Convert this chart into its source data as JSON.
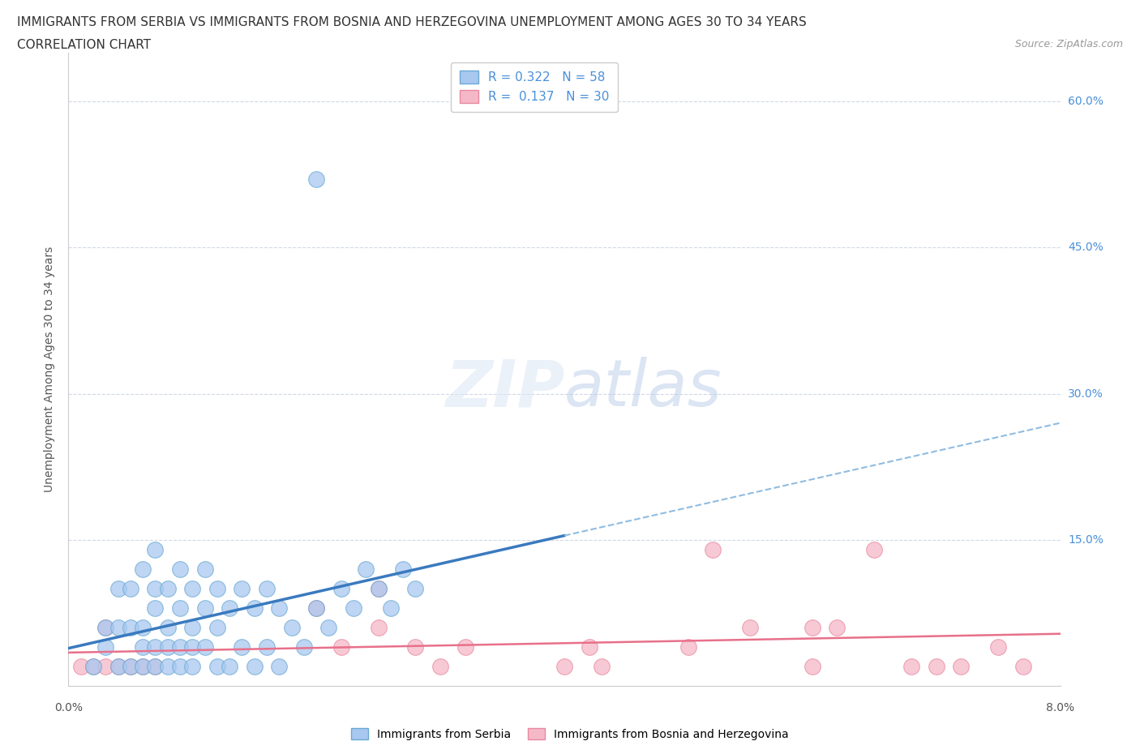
{
  "title_line1": "IMMIGRANTS FROM SERBIA VS IMMIGRANTS FROM BOSNIA AND HERZEGOVINA UNEMPLOYMENT AMONG AGES 30 TO 34 YEARS",
  "title_line2": "CORRELATION CHART",
  "source_text": "Source: ZipAtlas.com",
  "ylabel": "Unemployment Among Ages 30 to 34 years",
  "serbia_R": 0.322,
  "serbia_N": 58,
  "bosnia_R": 0.137,
  "bosnia_N": 30,
  "xlim": [
    0.0,
    0.08
  ],
  "ylim": [
    0.0,
    0.65
  ],
  "x_ticks": [
    0.0,
    0.02,
    0.04,
    0.06,
    0.08
  ],
  "y_ticks": [
    0.0,
    0.15,
    0.3,
    0.45,
    0.6
  ],
  "serbia_color": "#a8c8f0",
  "serbia_edge_color": "#6aaad4",
  "bosnia_color": "#f5b8c8",
  "bosnia_edge_color": "#e88aa0",
  "serbia_trend_color": "#3a7abf",
  "serbia_trend_dashed_color": "#90bce0",
  "bosnia_trend_color": "#e8708a",
  "watermark_text": "ZIPatlas",
  "right_label_color": "#4a90d9",
  "grid_color": "#d0d8e8",
  "serbia_x": [
    0.002,
    0.003,
    0.003,
    0.004,
    0.004,
    0.004,
    0.005,
    0.005,
    0.005,
    0.006,
    0.006,
    0.006,
    0.006,
    0.007,
    0.007,
    0.007,
    0.007,
    0.007,
    0.008,
    0.008,
    0.008,
    0.008,
    0.009,
    0.009,
    0.009,
    0.009,
    0.01,
    0.01,
    0.01,
    0.01,
    0.011,
    0.011,
    0.011,
    0.012,
    0.012,
    0.012,
    0.013,
    0.013,
    0.014,
    0.014,
    0.015,
    0.015,
    0.016,
    0.016,
    0.017,
    0.017,
    0.018,
    0.019,
    0.02,
    0.021,
    0.022,
    0.023,
    0.024,
    0.025,
    0.026,
    0.027,
    0.028,
    0.02
  ],
  "serbia_y": [
    0.02,
    0.04,
    0.06,
    0.02,
    0.06,
    0.1,
    0.02,
    0.06,
    0.1,
    0.02,
    0.04,
    0.06,
    0.12,
    0.02,
    0.04,
    0.08,
    0.1,
    0.14,
    0.02,
    0.04,
    0.06,
    0.1,
    0.02,
    0.04,
    0.08,
    0.12,
    0.02,
    0.04,
    0.06,
    0.1,
    0.04,
    0.08,
    0.12,
    0.02,
    0.06,
    0.1,
    0.02,
    0.08,
    0.04,
    0.1,
    0.02,
    0.08,
    0.04,
    0.1,
    0.02,
    0.08,
    0.06,
    0.04,
    0.08,
    0.06,
    0.1,
    0.08,
    0.12,
    0.1,
    0.08,
    0.12,
    0.1,
    0.52
  ],
  "bosnia_x": [
    0.001,
    0.002,
    0.003,
    0.004,
    0.005,
    0.006,
    0.007,
    0.02,
    0.022,
    0.025,
    0.028,
    0.03,
    0.032,
    0.04,
    0.042,
    0.043,
    0.05,
    0.052,
    0.055,
    0.06,
    0.062,
    0.065,
    0.068,
    0.07,
    0.072,
    0.075,
    0.077,
    0.003,
    0.025,
    0.06
  ],
  "bosnia_y": [
    0.02,
    0.02,
    0.02,
    0.02,
    0.02,
    0.02,
    0.02,
    0.08,
    0.04,
    0.06,
    0.04,
    0.02,
    0.04,
    0.02,
    0.04,
    0.02,
    0.04,
    0.14,
    0.06,
    0.02,
    0.06,
    0.14,
    0.02,
    0.02,
    0.02,
    0.04,
    0.02,
    0.06,
    0.1,
    0.06
  ],
  "title_fontsize": 11,
  "subtitle_fontsize": 11,
  "tick_fontsize": 10,
  "axis_label_fontsize": 10,
  "legend_fontsize": 11,
  "background_color": "#ffffff"
}
